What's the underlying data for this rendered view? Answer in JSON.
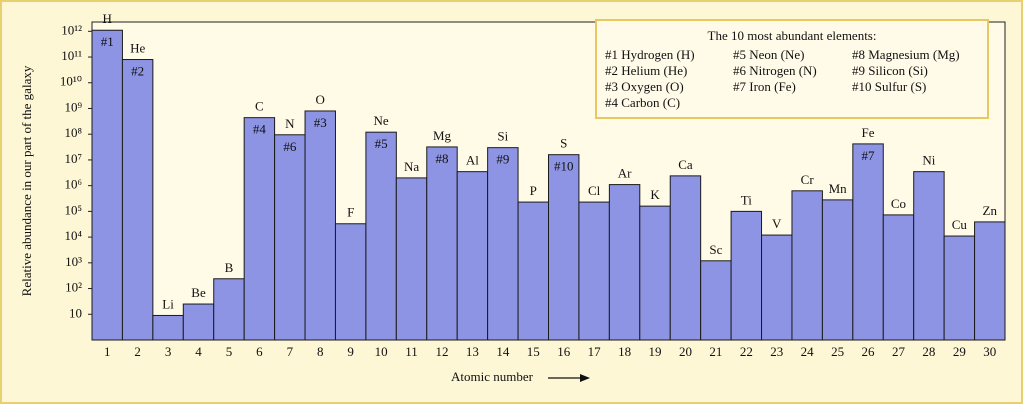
{
  "chart_data": {
    "type": "bar",
    "log_scale": true,
    "ylabel": "Relative abundance in our part of the galaxy",
    "xlabel": "Atomic number",
    "categories": [
      "1",
      "2",
      "3",
      "4",
      "5",
      "6",
      "7",
      "8",
      "9",
      "10",
      "11",
      "12",
      "13",
      "14",
      "15",
      "16",
      "17",
      "18",
      "19",
      "20",
      "21",
      "22",
      "23",
      "24",
      "25",
      "26",
      "27",
      "28",
      "29",
      "30"
    ],
    "symbols": [
      "H",
      "He",
      "Li",
      "Be",
      "B",
      "C",
      "N",
      "O",
      "F",
      "Ne",
      "Na",
      "Mg",
      "Al",
      "Si",
      "P",
      "S",
      "Cl",
      "Ar",
      "K",
      "Ca",
      "Sc",
      "Ti",
      "V",
      "Cr",
      "Mn",
      "Fe",
      "Co",
      "Ni",
      "Cu",
      "Zn"
    ],
    "ranks": [
      "#1",
      "#2",
      null,
      null,
      null,
      "#4",
      "#6",
      "#3",
      null,
      "#5",
      null,
      "#8",
      null,
      "#9",
      null,
      "#10",
      null,
      null,
      null,
      null,
      null,
      null,
      null,
      null,
      null,
      "#7",
      null,
      null,
      null,
      null
    ],
    "values": [
      1100000000000.0,
      80000000000.0,
      9,
      25,
      240,
      440000000.0,
      95000000.0,
      800000000.0,
      33000.0,
      120000000.0,
      2000000.0,
      32000000.0,
      3500000.0,
      30000000.0,
      230000.0,
      16000000.0,
      230000.0,
      1100000.0,
      160000.0,
      2400000.0,
      1200.0,
      100000.0,
      12000.0,
      630000.0,
      280000.0,
      42000000.0,
      73000.0,
      3500000.0,
      11000.0,
      39000.0
    ],
    "color": "#8d94e4",
    "ylim": [
      1,
      2300000000000.0
    ],
    "yticks": [
      10,
      {
        "value": 100,
        "label": "10²"
      },
      {
        "value": 1000,
        "label": "10³"
      },
      {
        "value": 10000,
        "label": "10⁴"
      },
      {
        "value": 100000,
        "label": "10⁵"
      },
      {
        "value": 1000000,
        "label": "10⁶"
      },
      {
        "value": 10000000,
        "label": "10⁷"
      },
      {
        "value": 100000000,
        "label": "10⁸"
      },
      {
        "value": 1000000000,
        "label": "10⁹"
      },
      {
        "value": 10000000000,
        "label": "10¹⁰"
      },
      {
        "value": 100000000000,
        "label": "10¹¹"
      },
      {
        "value": 1000000000000,
        "label": "10¹²"
      }
    ],
    "legend_title": "The 10 most abundant elements:",
    "legend_items": [
      "#1 Hydrogen (H)",
      "#2 Helium (He)",
      "#3 Oxygen (O)",
      "#4 Carbon (C)",
      "#5 Neon (Ne)",
      "#6 Nitrogen (N)",
      "#7 Iron (Fe)",
      "#8 Magnesium (Mg)",
      "#9 Silicon (Si)",
      "#10 Sulfur (S)"
    ]
  }
}
